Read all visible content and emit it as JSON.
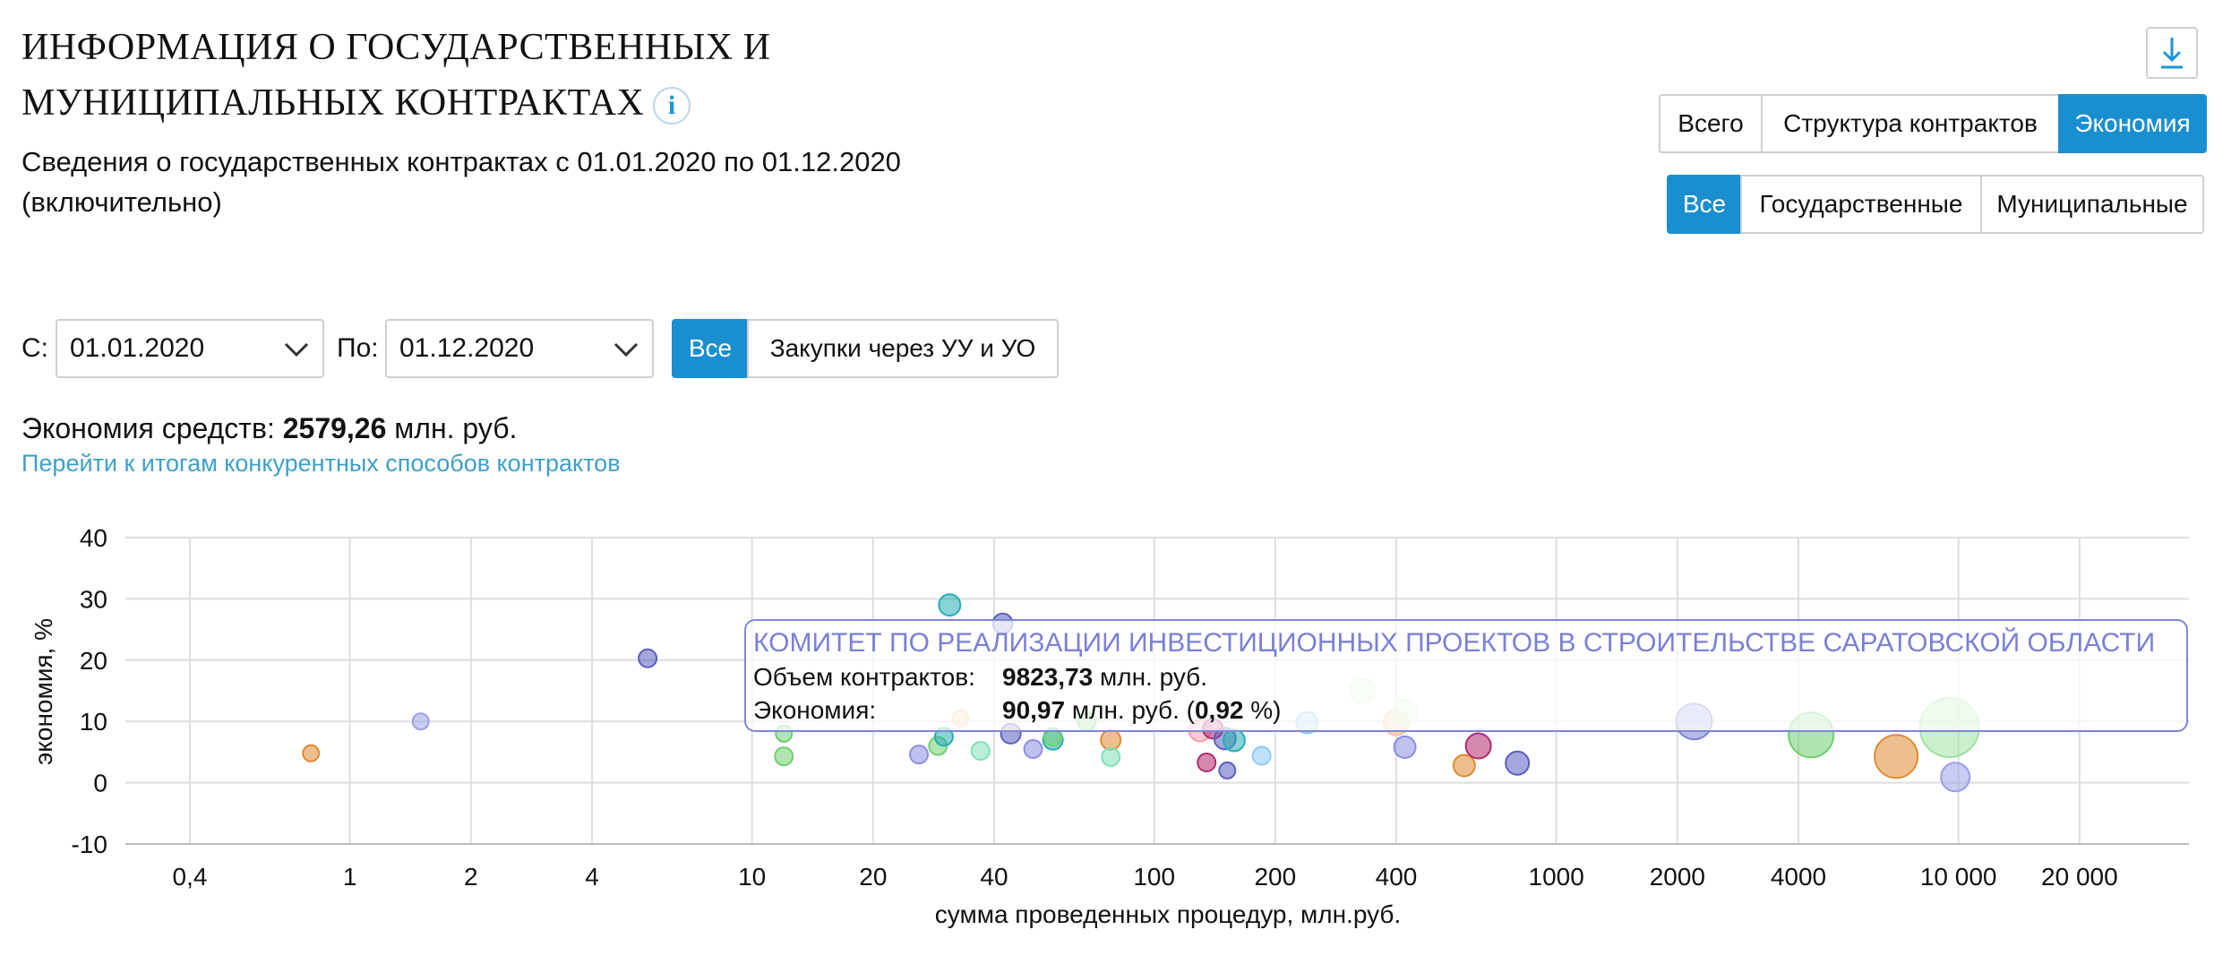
{
  "header": {
    "title_line1": "ИНФОРМАЦИЯ О ГОСУДАРСТВЕННЫХ И",
    "title_line2": "МУНИЦИПАЛЬНЫХ КОНТРАКТАХ",
    "info_icon_glyph": "i",
    "subtitle_line1": "Сведения о государственных контрактах с 01.01.2020 по 01.12.2020",
    "subtitle_line2": "(включительно)"
  },
  "toolbar": {
    "download_icon": "download-icon",
    "view_tabs": [
      {
        "label": "Всего",
        "active": false
      },
      {
        "label": "Структура контрактов",
        "active": false
      },
      {
        "label": "Экономия",
        "active": true
      }
    ],
    "type_tabs": [
      {
        "label": "Все",
        "active": true
      },
      {
        "label": "Государственные",
        "active": false
      },
      {
        "label": "Муниципальные",
        "active": false
      }
    ]
  },
  "filters": {
    "from_label": "С:",
    "from_value": "01.01.2020",
    "to_label": "По:",
    "to_value": "01.12.2020",
    "purchase_tabs": [
      {
        "label": "Все",
        "active": true
      },
      {
        "label": "Закупки через УУ и УО",
        "active": false
      }
    ]
  },
  "summary": {
    "label": "Экономия средств:",
    "value": "2579,26",
    "unit": "млн. руб.",
    "link": "Перейти к итогам конкурентных способов контрактов"
  },
  "tooltip": {
    "title": "КОМИТЕТ ПО РЕАЛИЗАЦИИ ИНВЕСТИЦИОННЫХ ПРОЕКТОВ В СТРОИТЕЛЬСТВЕ САРАТОВСКОЙ ОБЛАСТИ",
    "volume_label": "Объем контрактов:",
    "volume_value": "9823,73",
    "volume_unit": "млн. руб.",
    "econ_label": "Экономия:",
    "econ_value": "90,97",
    "econ_unit_open": "млн. руб. (",
    "econ_pct": "0,92",
    "econ_pct_close": " %)"
  },
  "chart_data": {
    "type": "scatter",
    "xlabel": "сумма проведенных процедур, млн.руб.",
    "ylabel": "экономия, %",
    "xscale": "log",
    "xlim": [
      0.3,
      30000
    ],
    "ylim": [
      -10,
      40
    ],
    "x_ticks": [
      0.4,
      1,
      2,
      4,
      10,
      20,
      40,
      100,
      200,
      400,
      1000,
      2000,
      4000,
      10000,
      20000
    ],
    "x_tick_labels": [
      "0,4",
      "1",
      "2",
      "4",
      "10",
      "20",
      "40",
      "100",
      "200",
      "400",
      "1000",
      "2000",
      "4000",
      "10 000",
      "20 000"
    ],
    "y_ticks": [
      -10,
      0,
      10,
      20,
      30,
      40
    ],
    "y_tick_labels": [
      "-10",
      "0",
      "10",
      "20",
      "30",
      "40"
    ],
    "grid": true,
    "points": [
      {
        "x": 0.8,
        "y": 4.8,
        "r": 9,
        "color": "#e08a32"
      },
      {
        "x": 1.5,
        "y": 10.0,
        "r": 9,
        "color": "#9aa0e8"
      },
      {
        "x": 5.5,
        "y": 20.3,
        "r": 10,
        "color": "#5a5fbf"
      },
      {
        "x": 12,
        "y": 8.0,
        "r": 9,
        "color": "#6fcf6f"
      },
      {
        "x": 12,
        "y": 4.3,
        "r": 10,
        "color": "#6fcf6f"
      },
      {
        "x": 26,
        "y": 4.6,
        "r": 10,
        "color": "#8a8fe0"
      },
      {
        "x": 29,
        "y": 6.0,
        "r": 10,
        "color": "#6fcf6f"
      },
      {
        "x": 30,
        "y": 7.5,
        "r": 10,
        "color": "#27aeb5"
      },
      {
        "x": 31,
        "y": 29.0,
        "r": 12,
        "color": "#27aeb5"
      },
      {
        "x": 33,
        "y": 10.5,
        "r": 9,
        "color": "#f4c48a"
      },
      {
        "x": 37,
        "y": 5.2,
        "r": 10,
        "color": "#7fe0b8"
      },
      {
        "x": 42,
        "y": 26.0,
        "r": 11,
        "color": "#5a5fbf"
      },
      {
        "x": 44,
        "y": 8.0,
        "r": 11,
        "color": "#5a5fbf"
      },
      {
        "x": 50,
        "y": 5.5,
        "r": 10,
        "color": "#8a8fe0"
      },
      {
        "x": 56,
        "y": 7.0,
        "r": 11,
        "color": "#27aeb5"
      },
      {
        "x": 56,
        "y": 7.5,
        "r": 10,
        "color": "#6fcf6f"
      },
      {
        "x": 68,
        "y": 10.0,
        "r": 10,
        "color": "#6fcf6f"
      },
      {
        "x": 78,
        "y": 7.0,
        "r": 11,
        "color": "#e08a32"
      },
      {
        "x": 78,
        "y": 4.2,
        "r": 10,
        "color": "#7fe0b8"
      },
      {
        "x": 130,
        "y": 8.5,
        "r": 12,
        "color": "#ff9aa8"
      },
      {
        "x": 135,
        "y": 3.3,
        "r": 10,
        "color": "#b02a6e"
      },
      {
        "x": 140,
        "y": 8.8,
        "r": 11,
        "color": "#b02a6e"
      },
      {
        "x": 150,
        "y": 7.2,
        "r": 12,
        "color": "#5a5fbf"
      },
      {
        "x": 152,
        "y": 2.0,
        "r": 9,
        "color": "#5a5fbf"
      },
      {
        "x": 158,
        "y": 6.9,
        "r": 12,
        "color": "#27aeb5"
      },
      {
        "x": 185,
        "y": 4.4,
        "r": 10,
        "color": "#8ec9f5"
      },
      {
        "x": 240,
        "y": 9.8,
        "r": 12,
        "color": "#8ec9f5"
      },
      {
        "x": 330,
        "y": 15.0,
        "r": 14,
        "color": "#d6f2d0"
      },
      {
        "x": 400,
        "y": 9.8,
        "r": 14,
        "color": "#f4c48a"
      },
      {
        "x": 420,
        "y": 11.5,
        "r": 14,
        "color": "#d6f2d0"
      },
      {
        "x": 420,
        "y": 5.8,
        "r": 12,
        "color": "#8a8fe0"
      },
      {
        "x": 590,
        "y": 2.8,
        "r": 12,
        "color": "#e08a32"
      },
      {
        "x": 640,
        "y": 6.0,
        "r": 14,
        "color": "#b02a6e"
      },
      {
        "x": 800,
        "y": 3.2,
        "r": 13,
        "color": "#5a5fbf"
      },
      {
        "x": 2200,
        "y": 10.0,
        "r": 20,
        "color": "#7a80d6"
      },
      {
        "x": 4300,
        "y": 7.8,
        "r": 25,
        "color": "#6fcf6f"
      },
      {
        "x": 7000,
        "y": 4.3,
        "r": 24,
        "color": "#e08a32"
      },
      {
        "x": 9500,
        "y": 9.0,
        "r": 33,
        "color": "#9ee29e"
      },
      {
        "x": 9823.73,
        "y": 0.92,
        "r": 16,
        "color": "#9aa0e8"
      }
    ]
  }
}
